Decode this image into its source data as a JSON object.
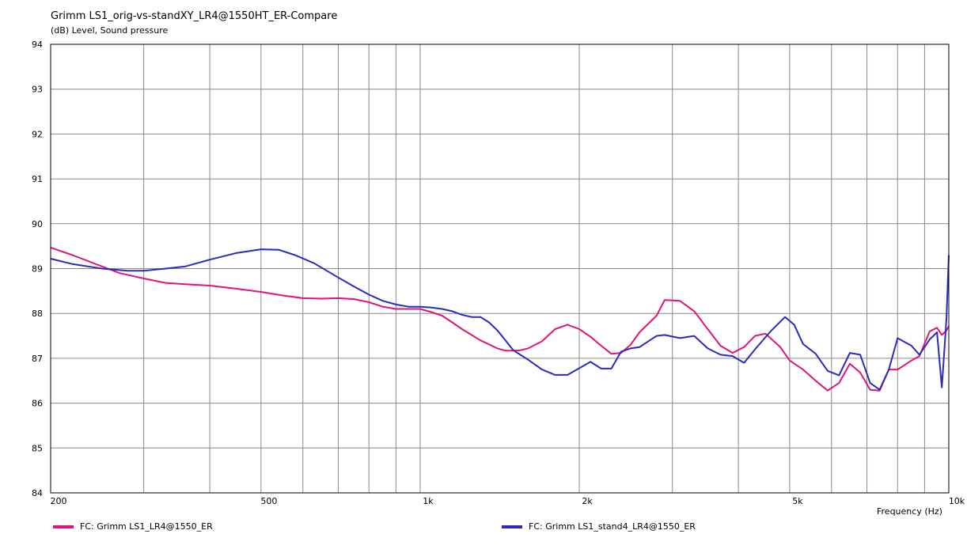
{
  "chart_data": {
    "type": "line",
    "title": "Grimm LS1_orig-vs-standXY_LR4@1550HT_ER-Compare",
    "ylabel": "(dB)  Level, Sound pressure",
    "xlabel": "Frequency  (Hz)",
    "x_scale": "log",
    "xlim": [
      200,
      10000
    ],
    "ylim": [
      84,
      94
    ],
    "grid": true,
    "legend_position": "bottom",
    "y_ticks": [
      84,
      85,
      86,
      87,
      88,
      89,
      90,
      91,
      92,
      93,
      94
    ],
    "x_tick_labels": [
      {
        "value": 200,
        "label": "200"
      },
      {
        "value": 500,
        "label": "500"
      },
      {
        "value": 1000,
        "label": "1k"
      },
      {
        "value": 2000,
        "label": "2k"
      },
      {
        "value": 5000,
        "label": "5k"
      },
      {
        "value": 10000,
        "label": "10k"
      }
    ],
    "x_gridlines": [
      200,
      300,
      400,
      500,
      600,
      700,
      800,
      900,
      1000,
      2000,
      3000,
      4000,
      5000,
      6000,
      7000,
      8000,
      9000,
      10000
    ],
    "series": [
      {
        "name": "FC: Grimm LS1_LR4@1550_ER",
        "color": "#e0157a",
        "points": [
          [
            200,
            89.47
          ],
          [
            220,
            89.3
          ],
          [
            250,
            89.05
          ],
          [
            270,
            88.9
          ],
          [
            300,
            88.78
          ],
          [
            330,
            88.68
          ],
          [
            360,
            88.65
          ],
          [
            400,
            88.62
          ],
          [
            450,
            88.55
          ],
          [
            500,
            88.48
          ],
          [
            550,
            88.4
          ],
          [
            600,
            88.34
          ],
          [
            650,
            88.33
          ],
          [
            700,
            88.34
          ],
          [
            750,
            88.32
          ],
          [
            800,
            88.25
          ],
          [
            850,
            88.15
          ],
          [
            900,
            88.1
          ],
          [
            950,
            88.1
          ],
          [
            1000,
            88.1
          ],
          [
            1050,
            88.03
          ],
          [
            1100,
            87.95
          ],
          [
            1150,
            87.8
          ],
          [
            1200,
            87.65
          ],
          [
            1300,
            87.4
          ],
          [
            1400,
            87.22
          ],
          [
            1450,
            87.17
          ],
          [
            1500,
            87.17
          ],
          [
            1550,
            87.18
          ],
          [
            1600,
            87.22
          ],
          [
            1700,
            87.38
          ],
          [
            1800,
            87.65
          ],
          [
            1900,
            87.75
          ],
          [
            2000,
            87.65
          ],
          [
            2100,
            87.48
          ],
          [
            2200,
            87.28
          ],
          [
            2300,
            87.1
          ],
          [
            2400,
            87.12
          ],
          [
            2500,
            87.3
          ],
          [
            2600,
            87.58
          ],
          [
            2800,
            87.95
          ],
          [
            2900,
            88.3
          ],
          [
            3100,
            88.28
          ],
          [
            3300,
            88.05
          ],
          [
            3500,
            87.65
          ],
          [
            3700,
            87.28
          ],
          [
            3900,
            87.12
          ],
          [
            4100,
            87.25
          ],
          [
            4300,
            87.5
          ],
          [
            4500,
            87.55
          ],
          [
            4800,
            87.25
          ],
          [
            5000,
            86.95
          ],
          [
            5300,
            86.75
          ],
          [
            5600,
            86.5
          ],
          [
            5900,
            86.28
          ],
          [
            6200,
            86.45
          ],
          [
            6500,
            86.88
          ],
          [
            6800,
            86.68
          ],
          [
            7100,
            86.3
          ],
          [
            7400,
            86.28
          ],
          [
            7700,
            86.75
          ],
          [
            8000,
            86.75
          ],
          [
            8500,
            86.95
          ],
          [
            8800,
            87.05
          ],
          [
            9200,
            87.6
          ],
          [
            9500,
            87.68
          ],
          [
            9700,
            87.52
          ],
          [
            9900,
            87.62
          ],
          [
            10000,
            87.72
          ]
        ]
      },
      {
        "name": "FC: Grimm LS1_stand4_LR4@1550_ER",
        "color": "#2a2abf",
        "points": [
          [
            200,
            89.22
          ],
          [
            220,
            89.1
          ],
          [
            250,
            89.0
          ],
          [
            280,
            88.95
          ],
          [
            300,
            88.95
          ],
          [
            330,
            89.0
          ],
          [
            360,
            89.05
          ],
          [
            400,
            89.2
          ],
          [
            450,
            89.35
          ],
          [
            500,
            89.43
          ],
          [
            540,
            89.42
          ],
          [
            580,
            89.3
          ],
          [
            630,
            89.12
          ],
          [
            700,
            88.8
          ],
          [
            750,
            88.6
          ],
          [
            800,
            88.42
          ],
          [
            850,
            88.28
          ],
          [
            900,
            88.2
          ],
          [
            950,
            88.15
          ],
          [
            1000,
            88.15
          ],
          [
            1050,
            88.13
          ],
          [
            1100,
            88.1
          ],
          [
            1150,
            88.05
          ],
          [
            1200,
            87.97
          ],
          [
            1250,
            87.92
          ],
          [
            1300,
            87.92
          ],
          [
            1350,
            87.8
          ],
          [
            1400,
            87.62
          ],
          [
            1450,
            87.4
          ],
          [
            1500,
            87.18
          ],
          [
            1600,
            86.97
          ],
          [
            1700,
            86.75
          ],
          [
            1800,
            86.63
          ],
          [
            1900,
            86.63
          ],
          [
            2000,
            86.78
          ],
          [
            2100,
            86.92
          ],
          [
            2200,
            86.77
          ],
          [
            2300,
            86.77
          ],
          [
            2400,
            87.15
          ],
          [
            2500,
            87.22
          ],
          [
            2600,
            87.25
          ],
          [
            2800,
            87.5
          ],
          [
            2900,
            87.52
          ],
          [
            3100,
            87.45
          ],
          [
            3300,
            87.5
          ],
          [
            3500,
            87.22
          ],
          [
            3700,
            87.08
          ],
          [
            3900,
            87.05
          ],
          [
            4100,
            86.9
          ],
          [
            4300,
            87.2
          ],
          [
            4600,
            87.6
          ],
          [
            4900,
            87.92
          ],
          [
            5100,
            87.75
          ],
          [
            5300,
            87.32
          ],
          [
            5600,
            87.1
          ],
          [
            5900,
            86.72
          ],
          [
            6200,
            86.62
          ],
          [
            6500,
            87.12
          ],
          [
            6800,
            87.08
          ],
          [
            7100,
            86.45
          ],
          [
            7400,
            86.3
          ],
          [
            7700,
            86.75
          ],
          [
            8000,
            87.45
          ],
          [
            8500,
            87.28
          ],
          [
            8800,
            87.08
          ],
          [
            9200,
            87.42
          ],
          [
            9500,
            87.58
          ],
          [
            9700,
            86.35
          ],
          [
            9900,
            87.9
          ],
          [
            10000,
            89.3
          ]
        ]
      }
    ]
  }
}
